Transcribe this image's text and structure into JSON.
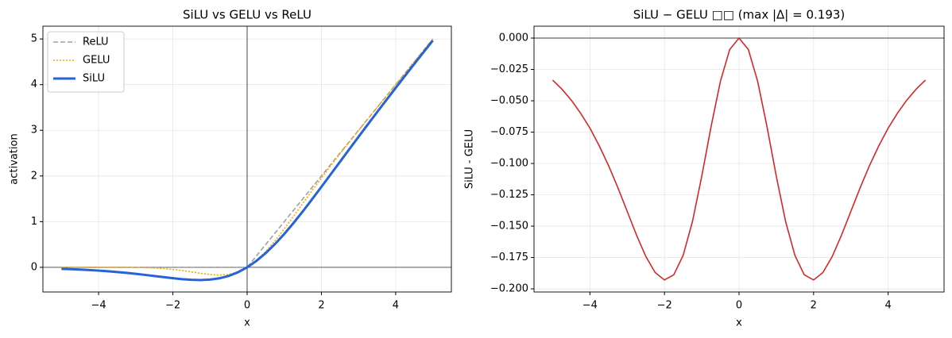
{
  "chart_data": [
    {
      "type": "line",
      "title": "SiLU vs GELU vs ReLU",
      "xlabel": "x",
      "ylabel": "activation",
      "x": [
        -5,
        -4.75,
        -4.5,
        -4.25,
        -4,
        -3.75,
        -3.5,
        -3.25,
        -3,
        -2.75,
        -2.5,
        -2.25,
        -2,
        -1.75,
        -1.5,
        -1.25,
        -1,
        -0.75,
        -0.5,
        -0.25,
        0,
        0.25,
        0.5,
        0.75,
        1,
        1.25,
        1.5,
        1.75,
        2,
        2.25,
        2.5,
        2.75,
        3,
        3.25,
        3.5,
        3.75,
        4,
        4.25,
        4.5,
        4.75,
        5
      ],
      "series": [
        {
          "name": "ReLU",
          "color": "#a0a0a0",
          "linestyle": "dashed",
          "values": [
            0,
            0,
            0,
            0,
            0,
            0,
            0,
            0,
            0,
            0,
            0,
            0,
            0,
            0,
            0,
            0,
            0,
            0,
            0,
            0,
            0,
            0.25,
            0.5,
            0.75,
            1,
            1.25,
            1.5,
            1.75,
            2,
            2.25,
            2.5,
            2.75,
            3,
            3.25,
            3.5,
            3.75,
            4,
            4.25,
            4.5,
            4.75,
            5
          ]
        },
        {
          "name": "GELU",
          "color": "#ffa500",
          "linestyle": "dotted",
          "values": [
            0,
            0,
            0,
            0,
            -0.0001,
            -0.0003,
            -0.0008,
            -0.0019,
            -0.004,
            -0.0082,
            -0.0155,
            -0.0274,
            -0.0455,
            -0.0702,
            -0.1002,
            -0.132,
            -0.1587,
            -0.17,
            -0.1543,
            -0.1003,
            0,
            0.1497,
            0.3457,
            0.58,
            0.8413,
            1.118,
            1.3998,
            1.6798,
            1.9545,
            2.2226,
            2.4845,
            2.7418,
            2.996,
            3.2481,
            3.4992,
            3.7497,
            3.9999,
            4.25,
            4.5,
            4.75,
            5
          ]
        },
        {
          "name": "SiLU",
          "color": "#2563d9",
          "linestyle": "solid",
          "values": [
            -0.0335,
            -0.0408,
            -0.0495,
            -0.0599,
            -0.0719,
            -0.0862,
            -0.1025,
            -0.1212,
            -0.1422,
            -0.1653,
            -0.1897,
            -0.2144,
            -0.2384,
            -0.259,
            -0.2736,
            -0.2784,
            -0.2689,
            -0.2406,
            -0.1888,
            -0.1094,
            0,
            0.1406,
            0.3112,
            0.5094,
            0.7311,
            0.9716,
            1.2264,
            1.491,
            1.7616,
            2.0356,
            2.3103,
            2.5847,
            2.8578,
            3.1288,
            3.3975,
            3.6638,
            3.9281,
            4.1901,
            4.4505,
            4.7092,
            4.9665
          ]
        }
      ],
      "xlim": [
        -5.5,
        5.5
      ],
      "ylim": [
        -0.54,
        5.28
      ],
      "xticks": [
        {
          "value": -4,
          "label": "−4"
        },
        {
          "value": -2,
          "label": "−2"
        },
        0,
        2,
        4
      ],
      "yticks": [
        0,
        1,
        2,
        3,
        4,
        5
      ],
      "grid": true,
      "hlines": [
        0
      ],
      "vlines": [
        0
      ],
      "legend": "upper left"
    },
    {
      "type": "line",
      "title": "SiLU − GELU □□ (max |Δ| = 0.193)",
      "xlabel": "x",
      "ylabel": "SiLU - GELU",
      "x": [
        -5,
        -4.75,
        -4.5,
        -4.25,
        -4,
        -3.75,
        -3.5,
        -3.25,
        -3,
        -2.75,
        -2.5,
        -2.25,
        -2,
        -1.75,
        -1.5,
        -1.25,
        -1,
        -0.75,
        -0.5,
        -0.25,
        0,
        0.25,
        0.5,
        0.75,
        1,
        1.25,
        1.5,
        1.75,
        2,
        2.25,
        2.5,
        2.75,
        3,
        3.25,
        3.5,
        3.75,
        4,
        4.25,
        4.5,
        4.75,
        5
      ],
      "series": [
        {
          "color": "#d62728",
          "linestyle": "solid",
          "values": [
            -0.0335,
            -0.0408,
            -0.0495,
            -0.0599,
            -0.0718,
            -0.0859,
            -0.1017,
            -0.1193,
            -0.1382,
            -0.1571,
            -0.1742,
            -0.187,
            -0.1929,
            -0.1888,
            -0.1734,
            -0.1464,
            -0.1102,
            -0.0706,
            -0.0345,
            -0.0091,
            0,
            -0.0091,
            -0.0345,
            -0.0706,
            -0.1102,
            -0.1464,
            -0.1734,
            -0.1888,
            -0.1929,
            -0.187,
            -0.1742,
            -0.1571,
            -0.1382,
            -0.1193,
            -0.1017,
            -0.0859,
            -0.0718,
            -0.0599,
            -0.0495,
            -0.0408,
            -0.0335
          ]
        }
      ],
      "xlim": [
        -5.5,
        5.5
      ],
      "ylim": [
        -0.2025,
        0.0095
      ],
      "xticks": [
        {
          "value": -4,
          "label": "−4"
        },
        {
          "value": -2,
          "label": "−2"
        },
        0,
        2,
        4
      ],
      "yticks": [
        {
          "value": 0,
          "label": "0.000"
        },
        {
          "value": -0.025,
          "label": "−0.025"
        },
        {
          "value": -0.05,
          "label": "−0.050"
        },
        {
          "value": -0.075,
          "label": "−0.075"
        },
        {
          "value": -0.1,
          "label": "−0.100"
        },
        {
          "value": -0.125,
          "label": "−0.125"
        },
        {
          "value": -0.15,
          "label": "−0.150"
        },
        {
          "value": -0.175,
          "label": "−0.175"
        },
        {
          "value": -0.2,
          "label": "−0.200"
        }
      ],
      "grid": true,
      "hlines": [
        0
      ]
    }
  ]
}
